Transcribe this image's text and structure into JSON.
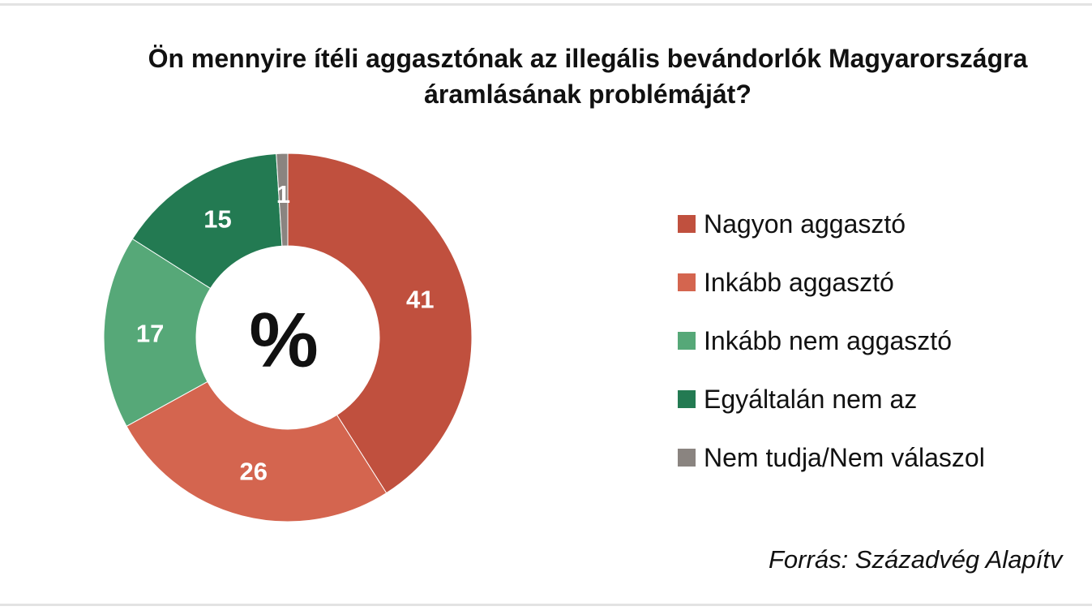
{
  "chart_data": {
    "type": "pie",
    "variant": "donut",
    "title": "Ön mennyire ítéli aggasztónak az illegális bevándorlók Magyarországra áramlásának problémáját?",
    "center_label": "%",
    "unit": "%",
    "slices": [
      {
        "name": "Nagyon aggasztó",
        "value": 41,
        "color": "#c0503e"
      },
      {
        "name": "Inkább aggasztó",
        "value": 26,
        "color": "#d4654f"
      },
      {
        "name": "Inkább nem aggasztó",
        "value": 17,
        "color": "#56a878"
      },
      {
        "name": "Egyáltalán nem az",
        "value": 15,
        "color": "#237a52"
      },
      {
        "name": "Nem tudja/Nem válaszol",
        "value": 1,
        "color": "#8a8480"
      }
    ],
    "legend_position": "right",
    "source": "Forrás: Századvég Alapítv"
  }
}
